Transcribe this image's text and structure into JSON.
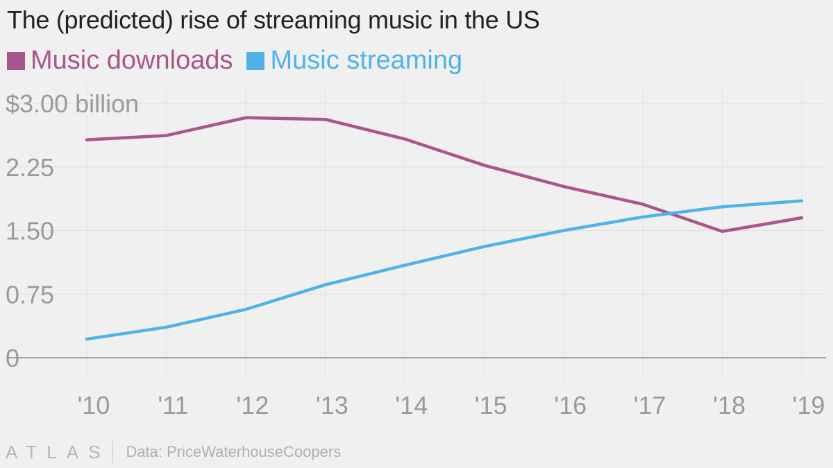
{
  "title": "The (predicted) rise of streaming music in the US",
  "brand": "ATLAS",
  "source": "Data: PriceWaterhouseCoopers",
  "chart_data": {
    "type": "line",
    "title": "The (predicted) rise of streaming music in the US",
    "xlabel": "",
    "ylabel": "",
    "categories": [
      "'10",
      "'11",
      "'12",
      "'13",
      "'14",
      "'15",
      "'16",
      "'17",
      "'18",
      "'19"
    ],
    "y_ticks": [
      {
        "value": 0,
        "label": "0"
      },
      {
        "value": 0.75,
        "label": "0.75"
      },
      {
        "value": 1.5,
        "label": "1.50"
      },
      {
        "value": 2.25,
        "label": "2.25"
      },
      {
        "value": 3,
        "label": "$3.00 billion"
      }
    ],
    "ylim": [
      0,
      3
    ],
    "grid": true,
    "legend_position": "top-left",
    "series": [
      {
        "name": "Music downloads",
        "color": "#a8568c",
        "values": [
          2.57,
          2.62,
          2.83,
          2.81,
          2.58,
          2.27,
          2.02,
          1.81,
          1.49,
          1.65
        ]
      },
      {
        "name": "Music streaming",
        "color": "#4fb3e8",
        "values": [
          0.22,
          0.36,
          0.57,
          0.86,
          1.09,
          1.31,
          1.5,
          1.66,
          1.78,
          1.85
        ]
      }
    ]
  }
}
